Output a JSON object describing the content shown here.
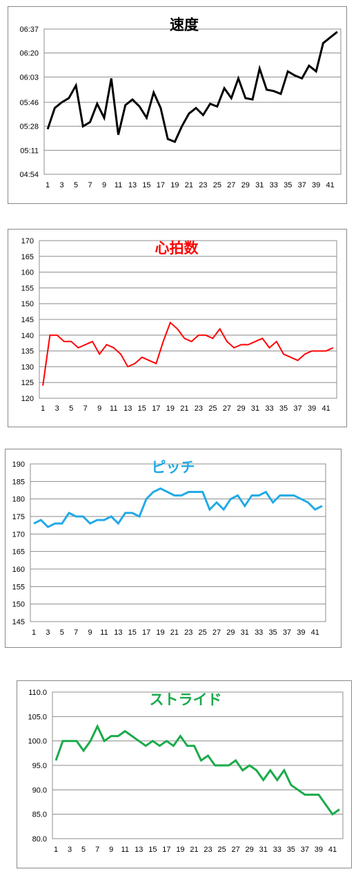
{
  "charts": [
    {
      "title": "速度",
      "color": "#000000",
      "chart_data": {
        "type": "line",
        "xlabel": "",
        "ylabel": "",
        "grid": true,
        "ylim": [
          294,
          397
        ],
        "y_ticks": [
          294,
          311,
          328,
          345,
          363,
          380,
          397
        ],
        "y_tick_labels": [
          "04:54",
          "05:11",
          "05:28",
          "05:46",
          "06:03",
          "06:20",
          "06:37"
        ],
        "x_tick_labels": [
          "1",
          "3",
          "5",
          "7",
          "9",
          "11",
          "13",
          "15",
          "17",
          "19",
          "21",
          "23",
          "25",
          "27",
          "29",
          "31",
          "33",
          "35",
          "37",
          "39",
          "41"
        ],
        "x": [
          1,
          2,
          3,
          4,
          5,
          6,
          7,
          8,
          9,
          10,
          11,
          12,
          13,
          14,
          15,
          16,
          17,
          18,
          19,
          20,
          21,
          22,
          23,
          24,
          25,
          26,
          27,
          28,
          29,
          30,
          31,
          32,
          33,
          34,
          35,
          36,
          37,
          38,
          39,
          40,
          41,
          42
        ],
        "values": [
          326,
          341,
          345,
          348,
          357,
          328,
          331,
          344,
          334,
          362,
          322,
          343,
          347,
          342,
          334,
          352,
          341,
          319,
          317,
          328,
          337,
          341,
          336,
          344,
          342,
          355,
          348,
          362,
          348,
          347,
          369,
          354,
          353,
          351,
          367,
          364,
          362,
          371,
          367,
          387,
          391,
          395
        ]
      }
    },
    {
      "title": "心拍数",
      "color": "#ff0000",
      "chart_data": {
        "type": "line",
        "xlabel": "",
        "ylabel": "",
        "grid": true,
        "ylim": [
          120,
          170
        ],
        "y_ticks": [
          120,
          125,
          130,
          135,
          140,
          145,
          150,
          155,
          160,
          165,
          170
        ],
        "y_tick_labels": [
          "120",
          "125",
          "130",
          "135",
          "140",
          "145",
          "150",
          "155",
          "160",
          "165",
          "170"
        ],
        "x_tick_labels": [
          "1",
          "3",
          "5",
          "7",
          "9",
          "11",
          "13",
          "15",
          "17",
          "19",
          "21",
          "23",
          "25",
          "27",
          "29",
          "31",
          "33",
          "35",
          "37",
          "39",
          "41"
        ],
        "x": [
          1,
          2,
          3,
          4,
          5,
          6,
          7,
          8,
          9,
          10,
          11,
          12,
          13,
          14,
          15,
          16,
          17,
          18,
          19,
          20,
          21,
          22,
          23,
          24,
          25,
          26,
          27,
          28,
          29,
          30,
          31,
          32,
          33,
          34,
          35,
          36,
          37,
          38,
          39,
          40,
          41,
          42
        ],
        "values": [
          124,
          140,
          140,
          138,
          138,
          136,
          137,
          138,
          134,
          137,
          136,
          134,
          130,
          131,
          133,
          132,
          131,
          138,
          144,
          142,
          139,
          138,
          140,
          140,
          139,
          142,
          138,
          136,
          137,
          137,
          138,
          139,
          136,
          138,
          134,
          133,
          132,
          134,
          135,
          135,
          135,
          136
        ]
      }
    },
    {
      "title": "ピッチ",
      "color": "#22aae6",
      "chart_data": {
        "type": "line",
        "xlabel": "",
        "ylabel": "",
        "grid": true,
        "ylim": [
          145,
          190
        ],
        "y_ticks": [
          145,
          150,
          155,
          160,
          165,
          170,
          175,
          180,
          185,
          190
        ],
        "y_tick_labels": [
          "145",
          "150",
          "155",
          "160",
          "165",
          "170",
          "175",
          "180",
          "185",
          "190"
        ],
        "x_tick_labels": [
          "1",
          "3",
          "5",
          "7",
          "9",
          "11",
          "13",
          "15",
          "17",
          "19",
          "21",
          "23",
          "25",
          "27",
          "29",
          "31",
          "33",
          "35",
          "37",
          "39",
          "41"
        ],
        "x": [
          1,
          2,
          3,
          4,
          5,
          6,
          7,
          8,
          9,
          10,
          11,
          12,
          13,
          14,
          15,
          16,
          17,
          18,
          19,
          20,
          21,
          22,
          23,
          24,
          25,
          26,
          27,
          28,
          29,
          30,
          31,
          32,
          33,
          34,
          35,
          36,
          37,
          38,
          39,
          40,
          41,
          42
        ],
        "values": [
          173,
          174,
          172,
          173,
          173,
          176,
          175,
          175,
          173,
          174,
          174,
          175,
          173,
          176,
          176,
          175,
          180,
          182,
          183,
          182,
          181,
          181,
          182,
          182,
          182,
          177,
          179,
          177,
          180,
          181,
          178,
          181,
          181,
          182,
          179,
          181,
          181,
          181,
          180,
          179,
          177,
          178
        ]
      }
    },
    {
      "title": "ストライド",
      "color": "#1aaa4a",
      "chart_data": {
        "type": "line",
        "xlabel": "",
        "ylabel": "",
        "grid": true,
        "ylim": [
          80,
          110
        ],
        "y_ticks": [
          80,
          85,
          90,
          95,
          100,
          105,
          110
        ],
        "y_tick_labels": [
          "80.0",
          "85.0",
          "90.0",
          "95.0",
          "100.0",
          "105.0",
          "110.0"
        ],
        "x_tick_labels": [
          "1",
          "3",
          "5",
          "7",
          "9",
          "11",
          "13",
          "15",
          "17",
          "19",
          "21",
          "23",
          "25",
          "27",
          "29",
          "31",
          "33",
          "35",
          "37",
          "39",
          "41"
        ],
        "x": [
          1,
          2,
          3,
          4,
          5,
          6,
          7,
          8,
          9,
          10,
          11,
          12,
          13,
          14,
          15,
          16,
          17,
          18,
          19,
          20,
          21,
          22,
          23,
          24,
          25,
          26,
          27,
          28,
          29,
          30,
          31,
          32,
          33,
          34,
          35,
          36,
          37,
          38,
          39,
          40,
          41,
          42
        ],
        "values": [
          96,
          100,
          100,
          100,
          98,
          100,
          103,
          100,
          101,
          101,
          102,
          101,
          100,
          99,
          100,
          99,
          100,
          99,
          101,
          99,
          99,
          96,
          97,
          95,
          95,
          95,
          96,
          94,
          95,
          94,
          92,
          94,
          92,
          94,
          91,
          90,
          89,
          89,
          89,
          87,
          85,
          86
        ]
      }
    }
  ]
}
